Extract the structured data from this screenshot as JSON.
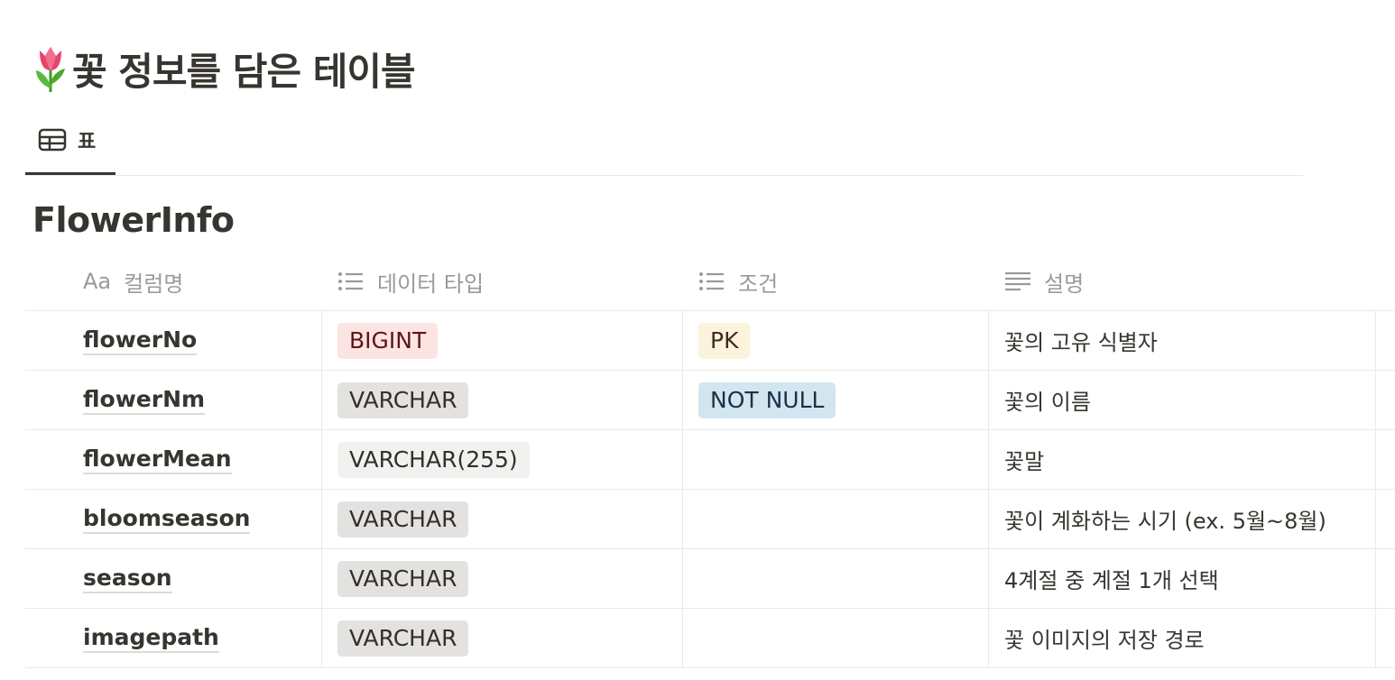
{
  "page": {
    "title": "꽃 정보를 담은 테이블",
    "title_icon": "tulip-icon"
  },
  "tabs": [
    {
      "label": "표",
      "icon": "table-icon",
      "active": true
    }
  ],
  "database": {
    "title": "FlowerInfo"
  },
  "columns": [
    {
      "label": "컬럼명",
      "icon": "aa-text-icon"
    },
    {
      "label": "데이터 타입",
      "icon": "multi-select-icon"
    },
    {
      "label": "조건",
      "icon": "multi-select-icon"
    },
    {
      "label": "설명",
      "icon": "text-lines-icon"
    }
  ],
  "rows": [
    {
      "name": "flowerNo",
      "type": {
        "label": "BIGINT",
        "color": "#fbe4e2",
        "text": "#5d1715"
      },
      "constraint": {
        "label": "PK",
        "color": "#fbf3db",
        "text": "#402c1b"
      },
      "description": "꽃의 고유 식별자"
    },
    {
      "name": "flowerNm",
      "type": {
        "label": "VARCHAR",
        "color": "#e3e2e0",
        "text": "#32302c"
      },
      "constraint": {
        "label": "NOT NULL",
        "color": "#d3e5ef",
        "text": "#183347"
      },
      "description": "꽃의 이름"
    },
    {
      "name": "flowerMean",
      "type": {
        "label": "VARCHAR(255)",
        "color": "#f1f1ef",
        "text": "#32302c"
      },
      "constraint": null,
      "description": "꽃말"
    },
    {
      "name": "bloomseason",
      "type": {
        "label": "VARCHAR",
        "color": "#e3e2e0",
        "text": "#32302c"
      },
      "constraint": null,
      "description": "꽃이 계화하는 시기 (ex. 5월~8월)"
    },
    {
      "name": "season",
      "type": {
        "label": "VARCHAR",
        "color": "#e3e2e0",
        "text": "#32302c"
      },
      "constraint": null,
      "description": "4계절 중 계절 1개 선택"
    },
    {
      "name": "imagepath",
      "type": {
        "label": "VARCHAR",
        "color": "#e3e2e0",
        "text": "#32302c"
      },
      "constraint": null,
      "description": "꽃 이미지의 저장 경로"
    }
  ]
}
